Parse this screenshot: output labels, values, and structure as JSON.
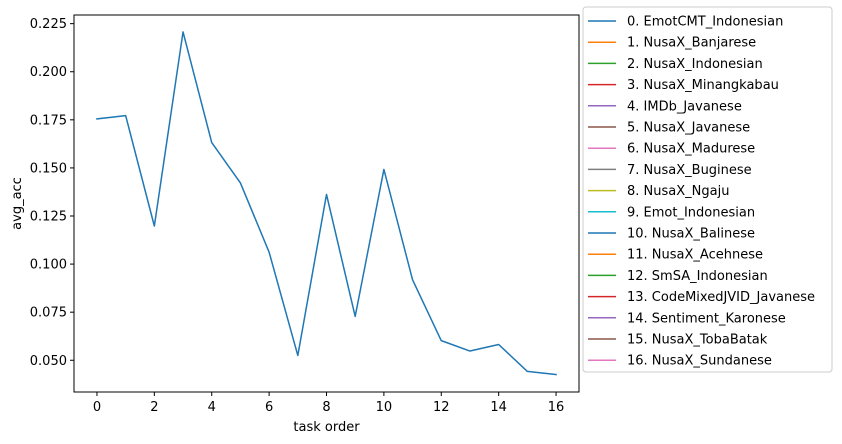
{
  "chart_data": {
    "type": "line",
    "title": "",
    "xlabel": "task order",
    "ylabel": "avg_acc",
    "xlim": [
      -0.8,
      16.8
    ],
    "ylim": [
      0.0335,
      0.2295
    ],
    "x_ticks": [
      0,
      2,
      4,
      6,
      8,
      10,
      12,
      14,
      16
    ],
    "y_ticks": [
      0.05,
      0.075,
      0.1,
      0.125,
      0.15,
      0.175,
      0.2,
      0.225
    ],
    "y_tick_labels": [
      "0.050",
      "0.075",
      "0.100",
      "0.125",
      "0.150",
      "0.175",
      "0.200",
      "0.225"
    ],
    "grid": false,
    "legend_position": "outside-right",
    "legend": [
      {
        "label": "0. EmotCMT_Indonesian",
        "color": "#1f77b4"
      },
      {
        "label": "1. NusaX_Banjarese",
        "color": "#ff7f0e"
      },
      {
        "label": "2. NusaX_Indonesian",
        "color": "#2ca02c"
      },
      {
        "label": "3. NusaX_Minangkabau",
        "color": "#d62728"
      },
      {
        "label": "4. IMDb_Javanese",
        "color": "#9467bd"
      },
      {
        "label": "5. NusaX_Javanese",
        "color": "#8c564b"
      },
      {
        "label": "6. NusaX_Madurese",
        "color": "#e377c2"
      },
      {
        "label": "7. NusaX_Buginese",
        "color": "#7f7f7f"
      },
      {
        "label": "8. NusaX_Ngaju",
        "color": "#bcbd22"
      },
      {
        "label": "9. Emot_Indonesian",
        "color": "#17becf"
      },
      {
        "label": "10. NusaX_Balinese",
        "color": "#1f77b4"
      },
      {
        "label": "11. NusaX_Acehnese",
        "color": "#ff7f0e"
      },
      {
        "label": "12. SmSA_Indonesian",
        "color": "#2ca02c"
      },
      {
        "label": "13. CodeMixedJVID_Javanese",
        "color": "#d62728"
      },
      {
        "label": "14. Sentiment_Karonese",
        "color": "#9467bd"
      },
      {
        "label": "15. NusaX_TobaBatak",
        "color": "#8c564b"
      },
      {
        "label": "16. NusaX_Sundanese",
        "color": "#e377c2"
      }
    ],
    "series": [
      {
        "color": "#1f77b4",
        "x": [
          0,
          1,
          2,
          3,
          4,
          5,
          6,
          7,
          8,
          9,
          10,
          11,
          12,
          13,
          14,
          15,
          16
        ],
        "y": [
          0.1755,
          0.1772,
          0.1198,
          0.2207,
          0.1632,
          0.1422,
          0.1062,
          0.0525,
          0.1362,
          0.0728,
          0.1492,
          0.0918,
          0.0602,
          0.0548,
          0.0582,
          0.0442,
          0.0426
        ]
      }
    ]
  }
}
